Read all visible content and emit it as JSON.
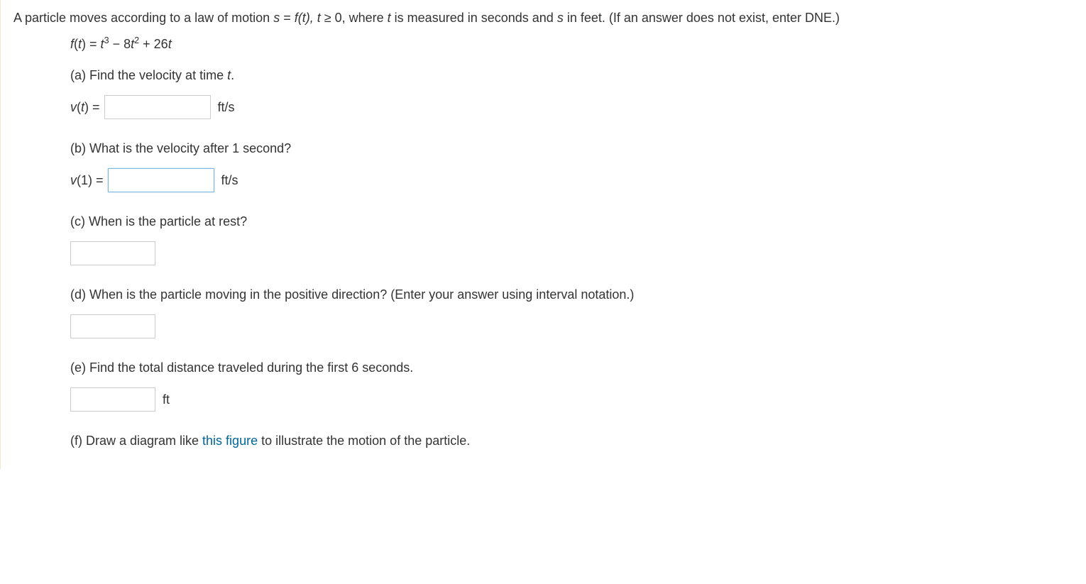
{
  "question": {
    "intro_text_before": "A particle moves according to a law of motion  ",
    "eq_s": "s",
    "eq_equals": " = ",
    "eq_f": "f",
    "eq_t_paren": "(t),   t ",
    "eq_geq": "≥",
    "eq_after": " 0,  where ",
    "eq_t_var": "t",
    "eq_mid": " is measured in seconds and ",
    "eq_s_var": "s",
    "eq_end": " in feet. (If an answer does not exist, enter DNE.)"
  },
  "formula": {
    "f": "f",
    "t_open": "(",
    "t_var": "t",
    "t_close": ") = ",
    "t_var2": "t",
    "exp3": "3",
    "minus": " − 8",
    "t_var3": "t",
    "exp2": "2",
    "plus": " + 26",
    "t_var4": "t"
  },
  "parts": {
    "a": {
      "label": "(a) Find the velocity at time ",
      "var": "t",
      "period": ".",
      "answer_prefix_v": "v",
      "answer_prefix_paren": "(",
      "answer_prefix_t": "t",
      "answer_prefix_close": ") = ",
      "unit": "ft/s"
    },
    "b": {
      "label": "(b) What is the velocity after 1 second?",
      "answer_prefix_v": "v",
      "answer_prefix_open": "(1) = ",
      "unit": "ft/s"
    },
    "c": {
      "label": "(c) When is the particle at rest?"
    },
    "d": {
      "label": "(d) When is the particle moving in the positive direction? (Enter your answer using interval notation.)"
    },
    "e": {
      "label": "(e) Find the total distance traveled during the first 6 seconds.",
      "unit": "ft"
    },
    "f": {
      "label_before": "(f) Draw a diagram like ",
      "link": "this figure",
      "label_after": " to illustrate the motion of the particle."
    }
  }
}
